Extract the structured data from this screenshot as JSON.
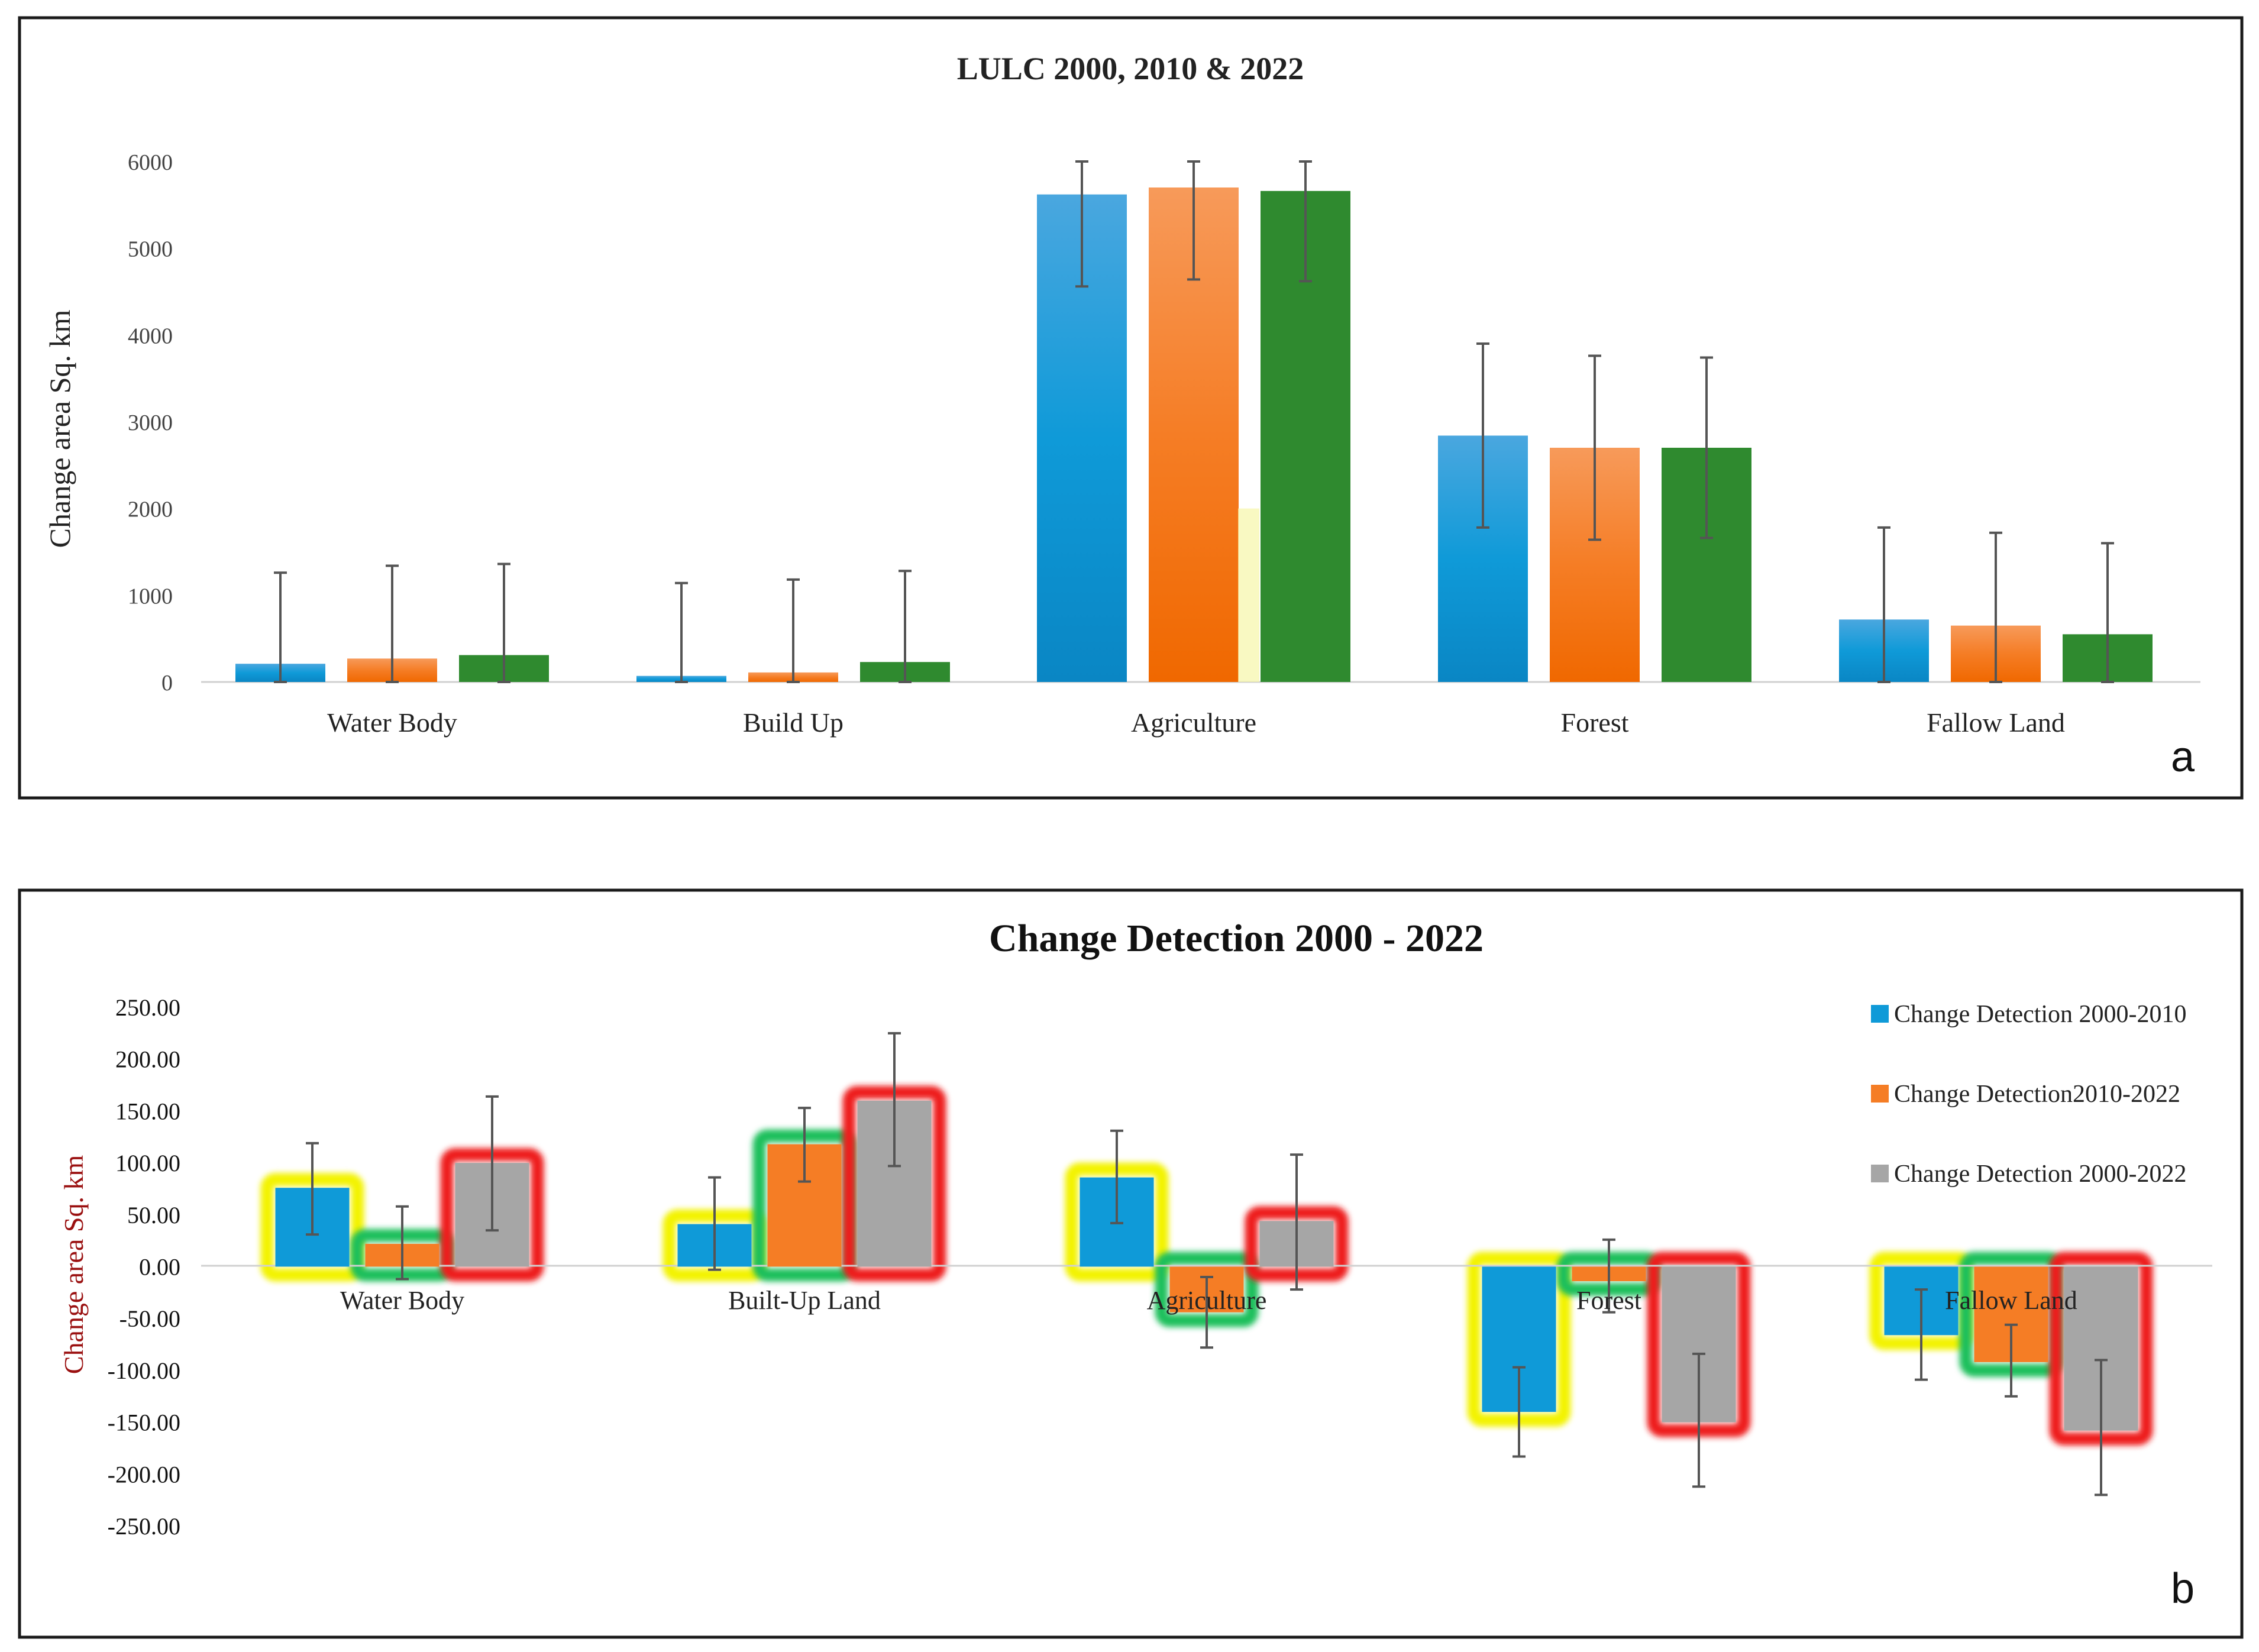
{
  "colors": {
    "blue": "#0f9ad8",
    "orange": "#f57d25",
    "green": "#2f8a2f",
    "gray": "#a6a6a6",
    "outline_2000_2010": "#f3f300",
    "outline_2010_2022": "#1fbf5c",
    "outline_2000_2022": "#ee1c1c"
  },
  "panel_a": {
    "panel_label": "a",
    "chart_data": {
      "type": "bar",
      "title": "LULC 2000, 2010 & 2022",
      "ylabel": "Change area Sq. km",
      "xlabel": "",
      "categories": [
        "Water Body",
        "Build Up",
        "Agriculture",
        "Forest",
        "Fallow Land"
      ],
      "ylim": [
        0,
        6000
      ],
      "yticks": [
        "0",
        "1000",
        "2000",
        "3000",
        "4000",
        "5000",
        "6000"
      ],
      "series": [
        {
          "color": "#0f9ad8",
          "values": [
            210,
            70,
            5620,
            2840,
            720
          ]
        },
        {
          "color": "#f57d25",
          "values": [
            270,
            110,
            5700,
            2700,
            650
          ]
        },
        {
          "color": "#2f8a2f",
          "values": [
            310,
            230,
            5660,
            2700,
            550
          ]
        }
      ],
      "error_bars": [
        [
          [
            0,
            1260
          ],
          [
            0,
            1140
          ],
          [
            4560,
            6000
          ],
          [
            1780,
            3900
          ],
          [
            0,
            1780
          ]
        ],
        [
          [
            0,
            1340
          ],
          [
            0,
            1180
          ],
          [
            4640,
            6000
          ],
          [
            1640,
            3760
          ],
          [
            0,
            1720
          ]
        ],
        [
          [
            0,
            1360
          ],
          [
            0,
            1280
          ],
          [
            4620,
            6000
          ],
          [
            1660,
            3740
          ],
          [
            0,
            1600
          ]
        ]
      ],
      "grid": false,
      "legend": "none"
    }
  },
  "panel_b": {
    "panel_label": "b",
    "chart_data": {
      "type": "bar",
      "title": "Change Detection 2000 - 2022",
      "ylabel": "Change area Sq. km",
      "xlabel": "",
      "categories": [
        "Water Body",
        "Built-Up Land",
        "Agriculture",
        "Forest",
        "Fallow Land"
      ],
      "ylim": [
        -250,
        250
      ],
      "yticks": [
        "-250.00",
        "-200.00",
        "-150.00",
        "-100.00",
        "-50.00",
        "0.00",
        "50.00",
        "100.00",
        "150.00",
        "200.00",
        "250.00"
      ],
      "series": [
        {
          "name": "Change Detection 2000-2010",
          "color": "#0f9ad8",
          "outline": "#f3f300",
          "values": [
            76,
            41,
            86,
            -140,
            -66
          ]
        },
        {
          "name": "Change Detection2010-2022",
          "color": "#f57d25",
          "outline": "#1fbf5c",
          "values": [
            22,
            118,
            -44,
            -14,
            -92
          ]
        },
        {
          "name": "Change Detection 2000-2022",
          "color": "#a6a6a6",
          "outline": "#ee1c1c",
          "values": [
            100,
            160,
            44,
            -150,
            -158
          ]
        }
      ],
      "error_bars": [
        [
          [
            31,
            119
          ],
          [
            -3,
            86
          ],
          [
            42,
            131
          ],
          [
            -183,
            -97
          ],
          [
            -109,
            -22
          ]
        ],
        [
          [
            -12,
            58
          ],
          [
            82,
            153
          ],
          [
            -78,
            -10
          ],
          [
            -44,
            26
          ],
          [
            -125,
            -56
          ]
        ],
        [
          [
            35,
            164
          ],
          [
            97,
            225
          ],
          [
            -22,
            108
          ],
          [
            -212,
            -84
          ],
          [
            -220,
            -90
          ]
        ]
      ],
      "grid": false,
      "legend": "right"
    }
  }
}
